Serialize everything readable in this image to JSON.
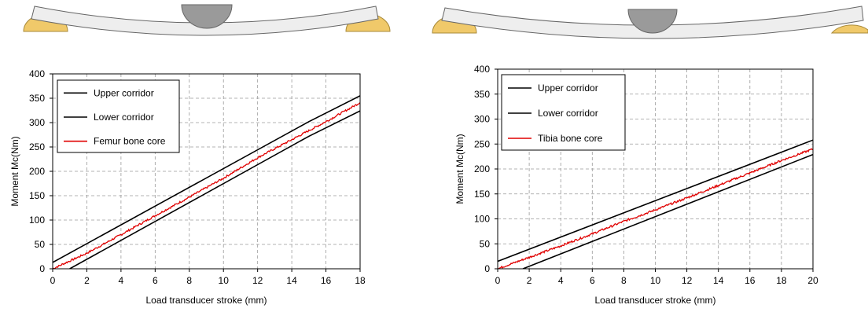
{
  "colors": {
    "corridor": "#000000",
    "bone": "#e00000",
    "support": "#f0c96a",
    "support_edge": "#a88a3a",
    "impactor": "#9a9a9a",
    "beam": "#eeeeee",
    "grid": "#9a9a9a"
  },
  "chart_data": [
    {
      "type": "line",
      "xlabel": "Load transducer stroke (mm)",
      "ylabel": "Moment Mc(Nm)",
      "xlim": [
        0,
        18
      ],
      "ylim": [
        0,
        400
      ],
      "x_ticks": [
        0,
        2,
        4,
        6,
        8,
        10,
        12,
        14,
        16,
        18
      ],
      "y_ticks": [
        0,
        50,
        100,
        150,
        200,
        250,
        300,
        350,
        400
      ],
      "grid": true,
      "legend_position": "top-left",
      "series": [
        {
          "name": "Upper corridor",
          "color": "#000000",
          "points": [
            [
              0,
              13
            ],
            [
              15,
              302
            ],
            [
              18,
              355
            ]
          ]
        },
        {
          "name": "Lower corridor",
          "color": "#000000",
          "points": [
            [
              1,
              0
            ],
            [
              15,
              272
            ],
            [
              18,
              324
            ]
          ]
        },
        {
          "name": "Femur bone core",
          "color": "#e00000",
          "points": [
            [
              0,
              0
            ],
            [
              2,
              32
            ],
            [
              4,
              70
            ],
            [
              6,
              109
            ],
            [
              8,
              147
            ],
            [
              10,
              186
            ],
            [
              12,
              228
            ],
            [
              14,
              265
            ],
            [
              16,
              302
            ],
            [
              18,
              341
            ]
          ]
        }
      ]
    },
    {
      "type": "line",
      "xlabel": "Load transducer stroke (mm)",
      "ylabel": "Moment Mc(Nm)",
      "xlim": [
        0,
        20
      ],
      "ylim": [
        0,
        400
      ],
      "x_ticks": [
        0,
        2,
        4,
        6,
        8,
        10,
        12,
        14,
        16,
        18,
        20
      ],
      "y_ticks": [
        0,
        50,
        100,
        150,
        200,
        250,
        300,
        350,
        400
      ],
      "grid": true,
      "legend_position": "top-left",
      "series": [
        {
          "name": "Upper corridor",
          "color": "#000000",
          "points": [
            [
              0,
              15
            ],
            [
              20,
              258
            ]
          ]
        },
        {
          "name": "Lower corridor",
          "color": "#000000",
          "points": [
            [
              1.6,
              0
            ],
            [
              20,
              229
            ]
          ]
        },
        {
          "name": "Tibia bone core",
          "color": "#e00000",
          "points": [
            [
              0,
              0
            ],
            [
              2,
              23
            ],
            [
              4,
              46
            ],
            [
              6,
              70
            ],
            [
              8,
              95
            ],
            [
              10,
              118
            ],
            [
              12,
              142
            ],
            [
              14,
              167
            ],
            [
              16,
              192
            ],
            [
              18,
              217
            ],
            [
              20,
              240
            ]
          ]
        }
      ]
    }
  ]
}
